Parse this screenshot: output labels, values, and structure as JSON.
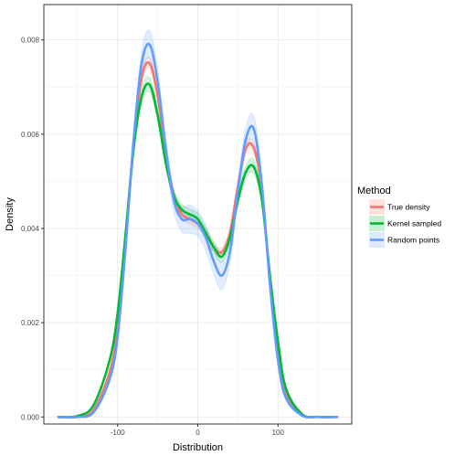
{
  "chart_data": {
    "type": "line",
    "xlabel": "Distribution",
    "ylabel": "Density",
    "xlim": [
      -192,
      192
    ],
    "ylim": [
      -0.00015,
      0.00875
    ],
    "x_ticks": [
      -100,
      0,
      100
    ],
    "x_tick_labels": [
      "-100",
      "0",
      "100"
    ],
    "y_ticks": [
      0.0,
      0.002,
      0.004,
      0.006,
      0.008
    ],
    "y_tick_labels": [
      "0.000",
      "0.002",
      "0.004",
      "0.006",
      "0.008"
    ],
    "grid": true,
    "legend": {
      "title": "Method",
      "position": "right"
    },
    "series": [
      {
        "name": "True density",
        "color": "#F8766D",
        "x": [
          -175,
          -150,
          -130,
          -110,
          -100,
          -90,
          -80,
          -70,
          -60,
          -50,
          -40,
          -30,
          -20,
          -10,
          0,
          10,
          20,
          30,
          40,
          50,
          60,
          70,
          80,
          90,
          100,
          110,
          130,
          150,
          175
        ],
        "y": [
          0.0,
          0.0,
          0.00015,
          0.00095,
          0.0019,
          0.0038,
          0.0058,
          0.0072,
          0.0075,
          0.0068,
          0.0056,
          0.0047,
          0.0043,
          0.0042,
          0.0041,
          0.0039,
          0.0036,
          0.0035,
          0.0039,
          0.0049,
          0.0057,
          0.0057,
          0.0048,
          0.0029,
          0.0014,
          0.0005,
          4e-05,
          0.0,
          0.0
        ],
        "band": [
          0.0,
          0.0,
          2e-05,
          5e-05,
          7e-05,
          9e-05,
          0.0001,
          0.00011,
          0.00012,
          0.00011,
          0.0001,
          0.0001,
          0.0001,
          0.0001,
          0.0001,
          0.0001,
          0.0001,
          0.0001,
          0.0001,
          0.0001,
          0.0001,
          0.00011,
          0.0001,
          8e-05,
          6e-05,
          3e-05,
          1e-05,
          0.0,
          0.0
        ]
      },
      {
        "name": "Kernel sampled",
        "color": "#00BA38",
        "x": [
          -175,
          -150,
          -130,
          -110,
          -100,
          -90,
          -80,
          -70,
          -60,
          -50,
          -40,
          -30,
          -20,
          -10,
          0,
          10,
          20,
          30,
          40,
          50,
          60,
          70,
          80,
          90,
          100,
          110,
          130,
          150,
          175
        ],
        "y": [
          0.0,
          2e-05,
          0.00025,
          0.0012,
          0.0022,
          0.0039,
          0.0057,
          0.0068,
          0.00705,
          0.0064,
          0.0054,
          0.0047,
          0.0044,
          0.0043,
          0.0042,
          0.0039,
          0.0036,
          0.0034,
          0.0038,
          0.0046,
          0.0052,
          0.0053,
          0.0046,
          0.003,
          0.0016,
          0.0006,
          6e-05,
          0.0,
          0.0
        ],
        "band": [
          0.0,
          1e-05,
          3e-05,
          6e-05,
          8e-05,
          0.0001,
          0.00012,
          0.00015,
          0.00016,
          0.00014,
          0.00012,
          0.00012,
          0.00012,
          0.00012,
          0.00012,
          0.00012,
          0.00012,
          0.00012,
          0.00012,
          0.00012,
          0.00014,
          0.00015,
          0.00012,
          0.0001,
          7e-05,
          3e-05,
          1e-05,
          0.0,
          0.0
        ]
      },
      {
        "name": "Random points",
        "color": "#619CFF",
        "x": [
          -175,
          -150,
          -130,
          -110,
          -100,
          -90,
          -80,
          -70,
          -60,
          -50,
          -40,
          -30,
          -20,
          -10,
          0,
          10,
          20,
          30,
          40,
          50,
          60,
          70,
          80,
          90,
          100,
          110,
          130,
          150,
          175
        ],
        "y": [
          0.0,
          0.0,
          0.0001,
          0.0008,
          0.0017,
          0.0036,
          0.0059,
          0.0075,
          0.0079,
          0.0071,
          0.0057,
          0.0046,
          0.0042,
          0.0042,
          0.0041,
          0.0038,
          0.0033,
          0.003,
          0.0035,
          0.0048,
          0.0059,
          0.0061,
          0.0049,
          0.0028,
          0.0012,
          0.0004,
          3e-05,
          0.0,
          0.0
        ],
        "band": [
          0.0,
          0.0,
          2e-05,
          8e-05,
          0.00013,
          0.00018,
          0.00022,
          0.00027,
          0.0003,
          0.00028,
          0.00024,
          0.00024,
          0.00028,
          0.0003,
          0.00028,
          0.00028,
          0.00028,
          0.0003,
          0.00025,
          0.00024,
          0.00025,
          0.00028,
          0.00022,
          0.00015,
          0.0001,
          5e-05,
          1e-05,
          0.0,
          0.0
        ]
      }
    ]
  }
}
